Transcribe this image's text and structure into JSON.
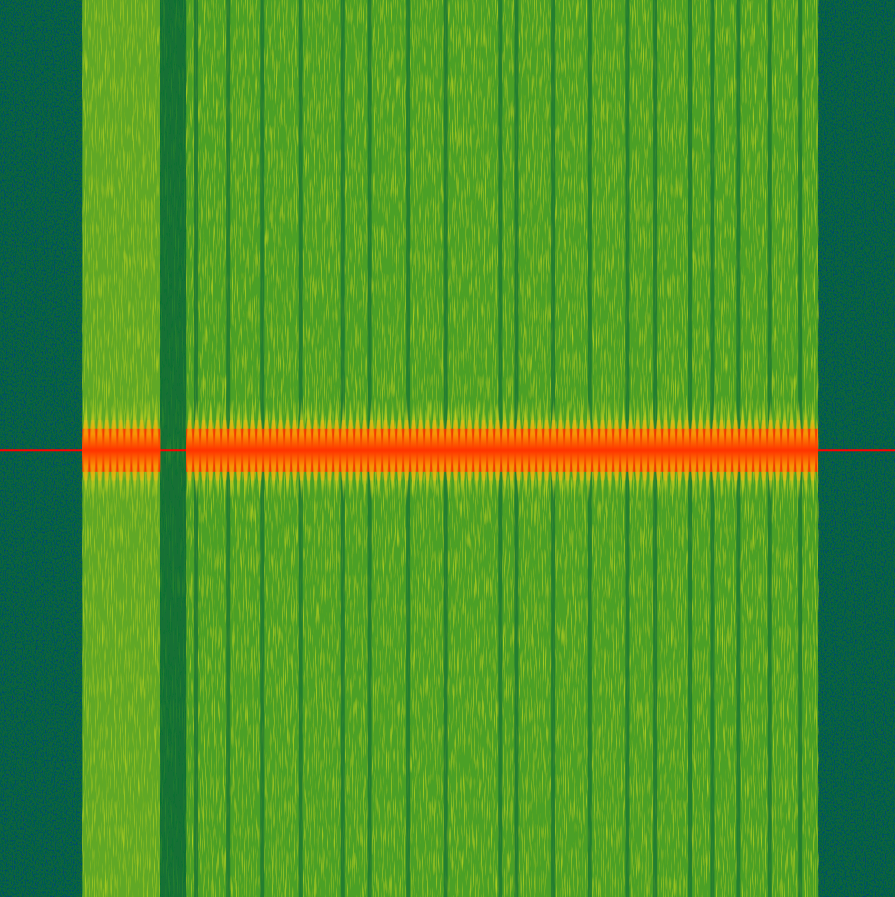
{
  "chart_data": {
    "type": "spectrogram",
    "xlim": [
      0,
      100
    ],
    "ylim": [
      0,
      100
    ],
    "tick_labels": false,
    "grid": false,
    "noise_floor": 20,
    "bands": [
      {
        "start": 9.2,
        "end": 17.9,
        "level": 55
      },
      {
        "start": 17.9,
        "end": 20.8,
        "level": 30
      },
      {
        "start": 20.8,
        "end": 91.4,
        "level": 52
      }
    ],
    "dark_lines": {
      "level": 33,
      "times": [
        21.9,
        25.5,
        29.3,
        33.6,
        38.3,
        41.3,
        45.6,
        49.8,
        55.9,
        57.7,
        61.8,
        65.9,
        70.1,
        73.2,
        77.1,
        79.6,
        82.5,
        86.0,
        89.4
      ]
    },
    "bursts": [
      {
        "start": 9.2,
        "end": 17.9,
        "frequency": 49.8,
        "bandwidth": 12,
        "level": 95
      },
      {
        "start": 20.8,
        "end": 91.4,
        "frequency": 49.8,
        "bandwidth": 12,
        "level": 95
      }
    ],
    "carrier": {
      "frequency": 49.8,
      "level": 100
    }
  }
}
